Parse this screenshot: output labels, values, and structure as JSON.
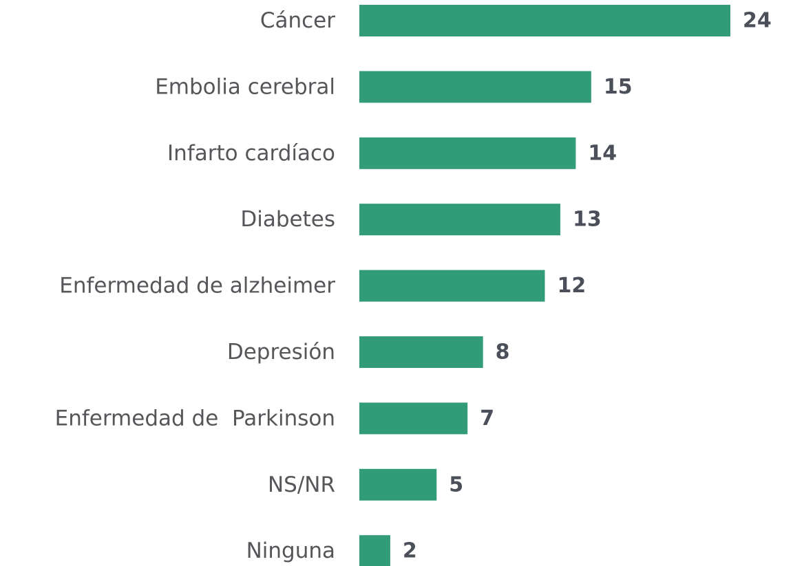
{
  "chart_data": {
    "type": "bar",
    "orientation": "horizontal",
    "categories": [
      "Cáncer",
      "Embolia cerebral",
      "Infarto cardíaco",
      "Diabetes",
      "Enfermedad de alzheimer",
      "Depresión",
      "Enfermedad de  Parkinson",
      "NS/NR",
      "Ninguna"
    ],
    "values": [
      24,
      15,
      14,
      13,
      12,
      8,
      7,
      5,
      2
    ],
    "color": "#329b78",
    "xlim": [
      0,
      24
    ]
  }
}
